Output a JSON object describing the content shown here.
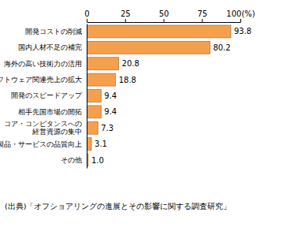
{
  "chart_data": {
    "type": "bar",
    "orientation": "horizontal",
    "categories": [
      "開発コストの削減",
      "国内人材不足の補完",
      "海外の高い技術力の活用",
      "ソフトウェア関連売上の拡大",
      "開発のスピードアップ",
      "相手先国市場の開拓",
      "コア・コンピタンスへの\n経営資源の集中",
      "製品・サービスの品質向上",
      "その他"
    ],
    "values": [
      93.8,
      80.2,
      20.8,
      18.8,
      9.4,
      9.4,
      7.3,
      3.1,
      1.0
    ],
    "value_labels": [
      "93.8",
      "80.2",
      "20.8",
      "18.8",
      "9.4",
      "9.4",
      "7.3",
      "3.1",
      "1.0"
    ],
    "color": "#f5a04c",
    "xlim": [
      0,
      100
    ],
    "xticks": [
      0,
      25,
      50,
      75,
      {
        "value": 100,
        "label": "100(%)"
      }
    ],
    "grid": false,
    "data_labels": true,
    "annotations": [
      "(出典)「オフショアリングの進展とその影響に関する調査研究」"
    ]
  }
}
